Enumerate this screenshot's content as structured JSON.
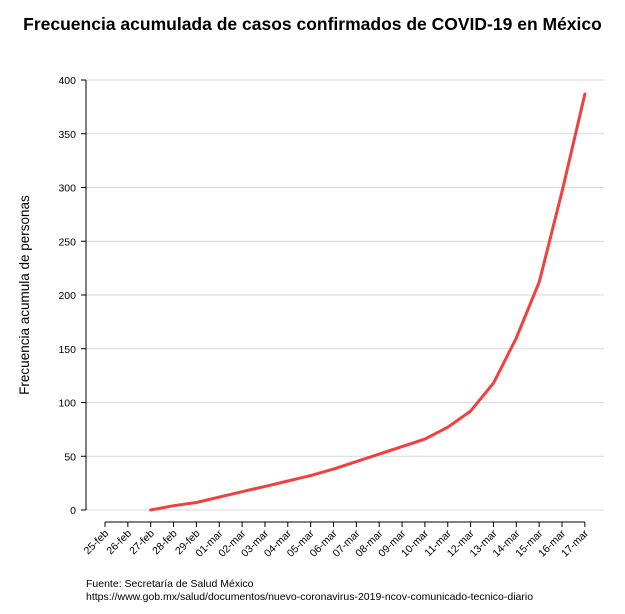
{
  "chart_data": {
    "type": "line",
    "title": "Frecuencia acumulada de casos confirmados de COVID-19 en México",
    "xlabel": "",
    "ylabel": "Frecuencia acumula de personas",
    "categories": [
      "25-feb",
      "26-feb",
      "27-feb",
      "28-feb",
      "29-feb",
      "01-mar",
      "02-mar",
      "03-mar",
      "04-mar",
      "05-mar",
      "06-mar",
      "07-mar",
      "08-mar",
      "09-mar",
      "10-mar",
      "11-mar",
      "12-mar",
      "13-mar",
      "14-mar",
      "15-mar",
      "16-mar",
      "17-mar"
    ],
    "series": [
      {
        "values": [
          null,
          null,
          0,
          4,
          7,
          12,
          17,
          22,
          27,
          32,
          38,
          45,
          52,
          59,
          66,
          77,
          92,
          118,
          160,
          212,
          296,
          387
        ]
      }
    ],
    "ylim": [
      0,
      400
    ],
    "yticks": [
      0,
      50,
      100,
      150,
      200,
      250,
      300,
      350,
      400
    ],
    "grid": "horizontal",
    "line_color": "#f04040"
  },
  "caption": {
    "line1": "Fuente: Secretaría de Salud México",
    "line2": "https://www.gob.mx/salud/documentos/nuevo-coronavirus-2019-ncov-comunicado-tecnico-diario"
  }
}
